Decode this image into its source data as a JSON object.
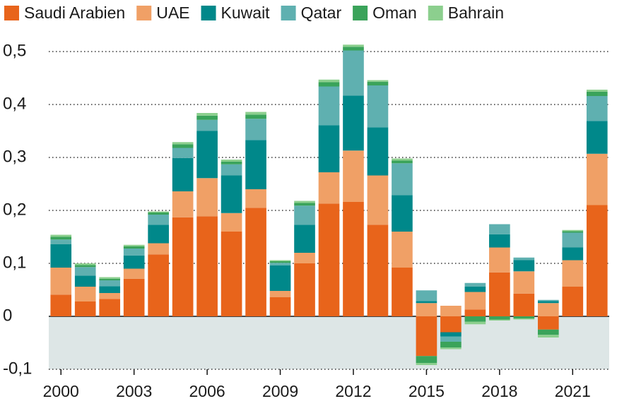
{
  "chart_data": {
    "type": "stacked-bar",
    "x": [
      2000,
      2001,
      2002,
      2003,
      2004,
      2005,
      2006,
      2007,
      2008,
      2009,
      2010,
      2011,
      2012,
      2013,
      2014,
      2015,
      2016,
      2017,
      2018,
      2019,
      2020,
      2021,
      2022
    ],
    "xlim": [
      1999.5,
      2022.5
    ],
    "xticks": [
      2000,
      2003,
      2006,
      2009,
      2012,
      2015,
      2018,
      2021
    ],
    "ylim": [
      -0.1,
      0.52
    ],
    "yticks": [
      {
        "value": -0.1,
        "label": "-0,1"
      },
      0,
      {
        "value": 0.1,
        "label": "0,1"
      },
      {
        "value": 0.2,
        "label": "0,2"
      },
      {
        "value": 0.3,
        "label": "0,3"
      },
      {
        "value": 0.4,
        "label": "0,4"
      },
      {
        "value": 0.5,
        "label": "0,5"
      }
    ],
    "grid": true,
    "legend": "top",
    "series": [
      {
        "name": "Saudi Arabien",
        "color": "#e8641b",
        "values": [
          0.041,
          0.028,
          0.033,
          0.071,
          0.117,
          0.187,
          0.189,
          0.16,
          0.205,
          0.036,
          0.1,
          0.213,
          0.216,
          0.173,
          0.092,
          -0.075,
          -0.03,
          0.013,
          0.083,
          0.043,
          -0.025,
          0.056,
          0.21
        ]
      },
      {
        "name": "UAE",
        "color": "#f0a066",
        "values": [
          0.051,
          0.028,
          0.011,
          0.019,
          0.021,
          0.049,
          0.072,
          0.035,
          0.035,
          0.012,
          0.02,
          0.059,
          0.097,
          0.093,
          0.068,
          0.025,
          0.02,
          0.033,
          0.047,
          0.042,
          0.025,
          0.05,
          0.097
        ]
      },
      {
        "name": "Kuwait",
        "color": "#00888a",
        "values": [
          0.044,
          0.021,
          0.013,
          0.025,
          0.035,
          0.063,
          0.089,
          0.071,
          0.093,
          0.048,
          0.053,
          0.089,
          0.104,
          0.091,
          0.069,
          0.004,
          -0.008,
          0.01,
          0.025,
          0.021,
          0.004,
          0.024,
          0.062
        ]
      },
      {
        "name": "Qatar",
        "color": "#5fb0b0",
        "values": [
          0.009,
          0.016,
          0.011,
          0.013,
          0.019,
          0.019,
          0.021,
          0.021,
          0.04,
          0.005,
          0.036,
          0.073,
          0.085,
          0.079,
          0.06,
          0.02,
          -0.01,
          0.007,
          0.019,
          0.005,
          0.002,
          0.028,
          0.047
        ]
      },
      {
        "name": "Oman",
        "color": "#3aa35a",
        "values": [
          0.005,
          0.004,
          0.003,
          0.004,
          0.004,
          0.007,
          0.008,
          0.005,
          0.008,
          0.003,
          0.005,
          0.008,
          0.007,
          0.007,
          0.005,
          -0.013,
          -0.011,
          -0.01,
          -0.006,
          -0.004,
          -0.01,
          0.003,
          0.008
        ]
      },
      {
        "name": "Bahrain",
        "color": "#8ccf8e",
        "values": [
          0.004,
          0.003,
          0.003,
          0.003,
          0.002,
          0.004,
          0.005,
          0.004,
          0.005,
          0.002,
          0.004,
          0.005,
          0.004,
          0.003,
          0.004,
          -0.004,
          -0.003,
          -0.005,
          -0.002,
          -0.002,
          -0.005,
          0.002,
          0.004
        ]
      }
    ]
  }
}
